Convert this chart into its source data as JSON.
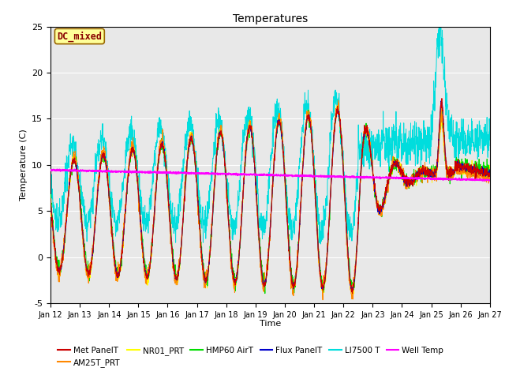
{
  "title": "Temperatures",
  "xlabel": "Time",
  "ylabel": "Temperature (C)",
  "ylim": [
    -5,
    25
  ],
  "n_days": 15,
  "xtick_labels": [
    "Jan 12",
    "Jan 13",
    "Jan 14",
    "Jan 15",
    "Jan 16",
    "Jan 17",
    "Jan 18",
    "Jan 19",
    "Jan 20",
    "Jan 21",
    "Jan 22",
    "Jan 23",
    "Jan 24",
    "Jan 25",
    "Jan 26",
    "Jan 27"
  ],
  "ytick_labels": [
    -5,
    0,
    5,
    10,
    15,
    20,
    25
  ],
  "series_colors": {
    "Met PanelT": "#cc0000",
    "AM25T_PRT": "#ff8800",
    "NR01_PRT": "#ffff00",
    "HMP60 AirT": "#00dd00",
    "Flux PanelT": "#0000cc",
    "LI7500 T": "#00dddd",
    "Well Temp": "#ff00ff"
  },
  "dc_mixed_box_color": "#ffff99",
  "dc_mixed_text_color": "#880000",
  "dc_mixed_border_color": "#996600",
  "plot_bg_color": "#e8e8e8",
  "fig_bg_color": "#ffffff",
  "grid_color": "#ffffff",
  "figsize": [
    6.4,
    4.8
  ],
  "dpi": 100
}
